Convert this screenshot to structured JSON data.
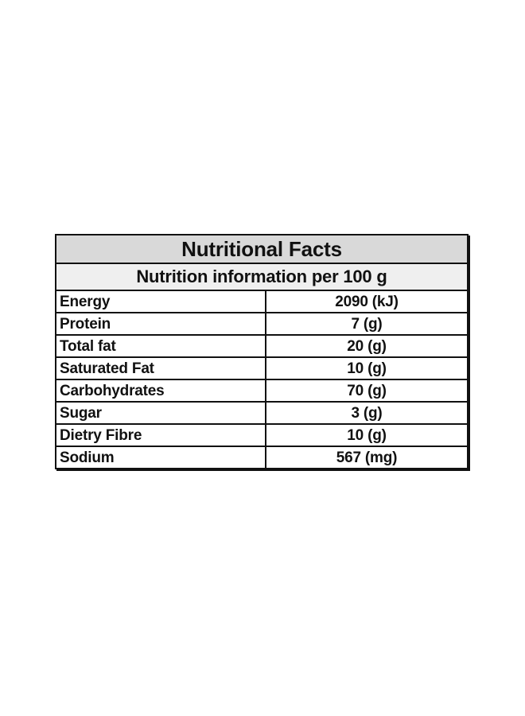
{
  "table": {
    "title": "Nutritional Facts",
    "subtitle": "Nutrition information per 100 g",
    "rows": [
      {
        "nutrient": "Energy",
        "amount": "2090 (kJ)"
      },
      {
        "nutrient": "Protein",
        "amount": "7 (g)"
      },
      {
        "nutrient": "Total fat",
        "amount": "20 (g)"
      },
      {
        "nutrient": "Saturated Fat",
        "amount": "10 (g)"
      },
      {
        "nutrient": "Carbohydrates",
        "amount": "70 (g)"
      },
      {
        "nutrient": "Sugar",
        "amount": "3 (g)"
      },
      {
        "nutrient": "Dietry Fibre",
        "amount": "10 (g)"
      },
      {
        "nutrient": "Sodium",
        "amount": "567 (mg)"
      }
    ]
  }
}
